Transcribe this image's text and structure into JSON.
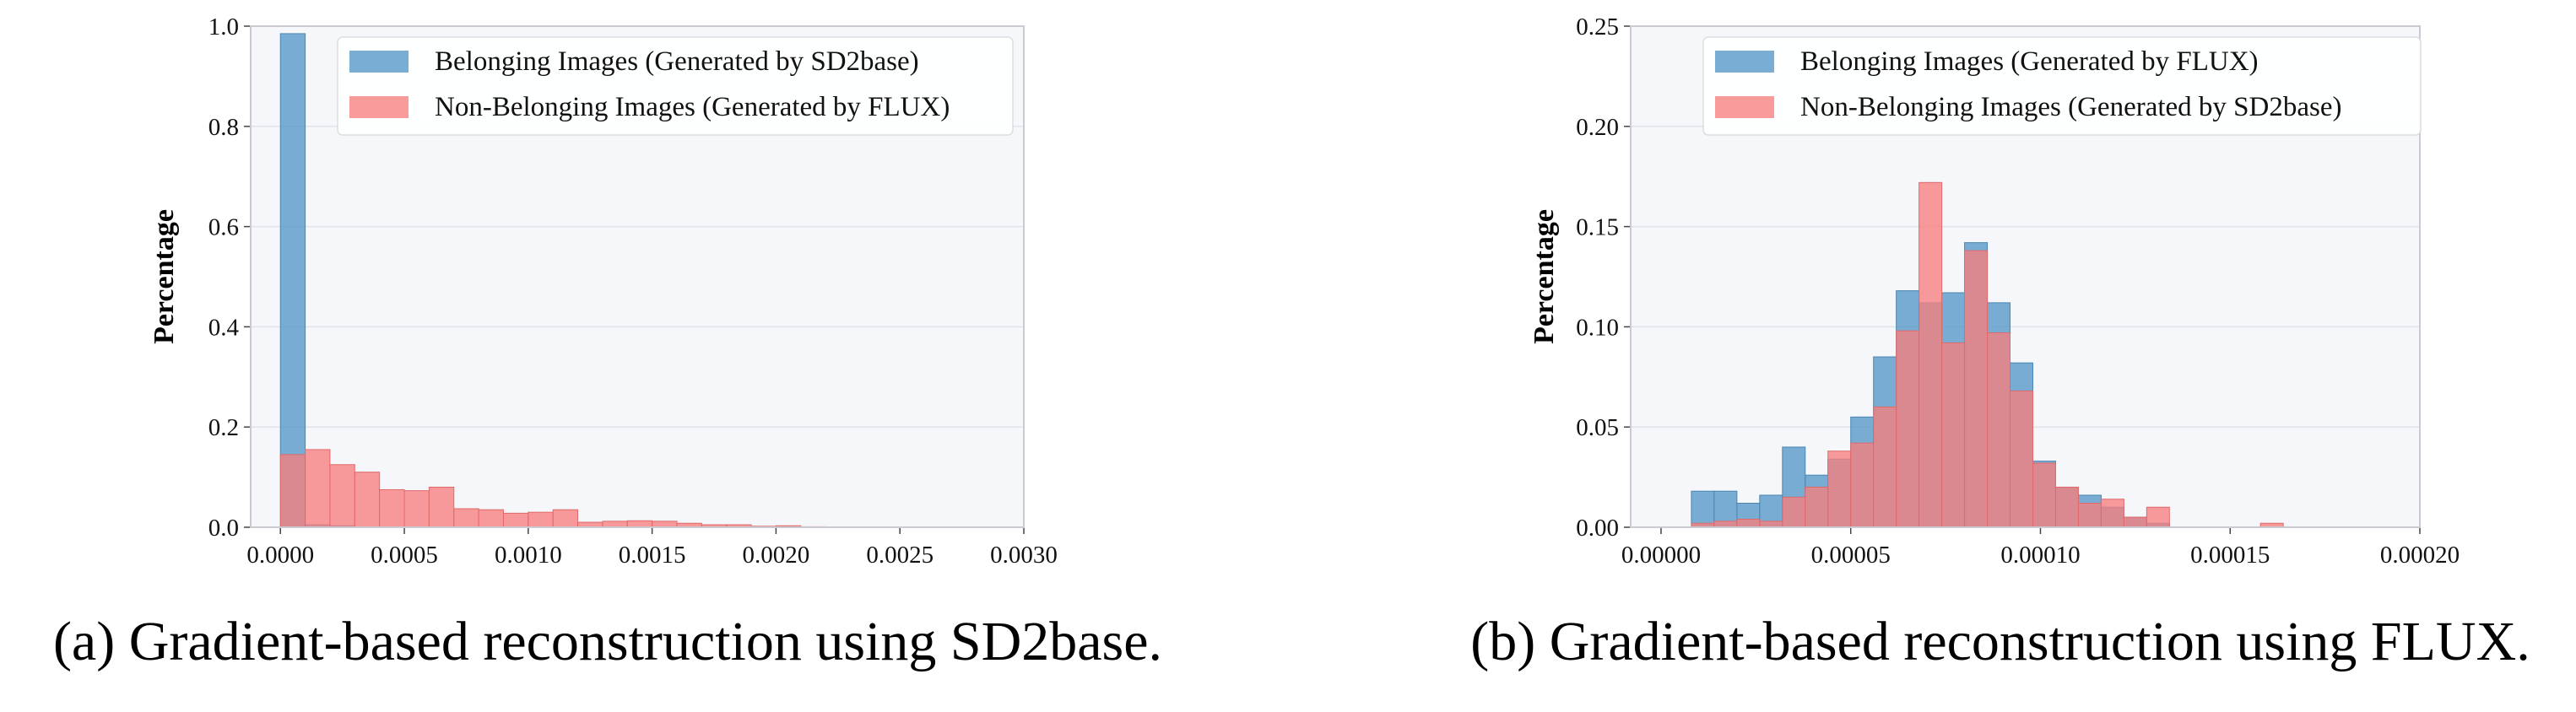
{
  "chart_data": [
    {
      "type": "bar",
      "ylabel": "Percentage",
      "xlabel": "",
      "xlim": [
        -0.00012,
        0.003
      ],
      "ylim": [
        0,
        1.0
      ],
      "xticks": [
        "0.0000",
        "0.0005",
        "0.0010",
        "0.0015",
        "0.0020",
        "0.0025",
        "0.0030"
      ],
      "yticks": [
        "0.0",
        "0.2",
        "0.4",
        "0.6",
        "0.8",
        "1.0"
      ],
      "grid": true,
      "legend_position": "top-right",
      "bin_width": 0.0001,
      "series": [
        {
          "name": "Belonging Images (Generated by SD2base)",
          "color": "#5b9bc9",
          "bins": [
            [
              0.0,
              0.985
            ],
            [
              0.0001,
              0.005
            ],
            [
              0.0002,
              0.003
            ]
          ]
        },
        {
          "name": "Non-Belonging Images (Generated by FLUX)",
          "color": "#f77f7f",
          "bins": [
            [
              0.0,
              0.145
            ],
            [
              0.0001,
              0.155
            ],
            [
              0.0002,
              0.125
            ],
            [
              0.0003,
              0.11
            ],
            [
              0.0004,
              0.075
            ],
            [
              0.0005,
              0.073
            ],
            [
              0.0006,
              0.08
            ],
            [
              0.0007,
              0.037
            ],
            [
              0.0008,
              0.035
            ],
            [
              0.0009,
              0.028
            ],
            [
              0.001,
              0.03
            ],
            [
              0.0011,
              0.035
            ],
            [
              0.0012,
              0.01
            ],
            [
              0.0013,
              0.012
            ],
            [
              0.0014,
              0.013
            ],
            [
              0.0015,
              0.012
            ],
            [
              0.0016,
              0.008
            ],
            [
              0.0017,
              0.005
            ],
            [
              0.0018,
              0.005
            ],
            [
              0.0019,
              0.002
            ],
            [
              0.002,
              0.003
            ],
            [
              0.0021,
              0.001
            ]
          ]
        }
      ],
      "caption": "(a) Gradient-based reconstruction using SD2base."
    },
    {
      "type": "bar",
      "ylabel": "Percentage",
      "xlabel": "",
      "xlim": [
        -8e-06,
        0.0002
      ],
      "ylim": [
        0,
        0.25
      ],
      "xticks": [
        "0.00000",
        "0.00005",
        "0.00010",
        "0.00015",
        "0.00020"
      ],
      "yticks": [
        "0.00",
        "0.05",
        "0.10",
        "0.15",
        "0.20",
        "0.25"
      ],
      "grid": true,
      "legend_position": "top-right",
      "bin_width": 6e-06,
      "series": [
        {
          "name": "Belonging Images (Generated by FLUX)",
          "color": "#5b9bc9",
          "bins": [
            [
              8e-06,
              0.018
            ],
            [
              1.4e-05,
              0.018
            ],
            [
              2e-05,
              0.012
            ],
            [
              2.6e-05,
              0.016
            ],
            [
              3.2e-05,
              0.04
            ],
            [
              3.8e-05,
              0.026
            ],
            [
              4.4e-05,
              0.034
            ],
            [
              5e-05,
              0.055
            ],
            [
              5.6e-05,
              0.085
            ],
            [
              6.2e-05,
              0.118
            ],
            [
              6.8e-05,
              0.112
            ],
            [
              7.4e-05,
              0.117
            ],
            [
              8e-05,
              0.142
            ],
            [
              8.6e-05,
              0.112
            ],
            [
              9.2e-05,
              0.082
            ],
            [
              9.8e-05,
              0.033
            ],
            [
              0.000104,
              0.02
            ],
            [
              0.00011,
              0.016
            ],
            [
              0.000116,
              0.01
            ],
            [
              0.000122,
              0.005
            ],
            [
              0.000128,
              0.002
            ]
          ]
        },
        {
          "name": "Non-Belonging Images (Generated by SD2base)",
          "color": "#f77f7f",
          "bins": [
            [
              8e-06,
              0.002
            ],
            [
              1.4e-05,
              0.003
            ],
            [
              2e-05,
              0.004
            ],
            [
              2.6e-05,
              0.003
            ],
            [
              3.2e-05,
              0.015
            ],
            [
              3.8e-05,
              0.02
            ],
            [
              4.4e-05,
              0.038
            ],
            [
              5e-05,
              0.042
            ],
            [
              5.6e-05,
              0.06
            ],
            [
              6.2e-05,
              0.098
            ],
            [
              6.8e-05,
              0.172
            ],
            [
              7.4e-05,
              0.092
            ],
            [
              8e-05,
              0.138
            ],
            [
              8.6e-05,
              0.097
            ],
            [
              9.2e-05,
              0.068
            ],
            [
              9.8e-05,
              0.032
            ],
            [
              0.000104,
              0.02
            ],
            [
              0.00011,
              0.012
            ],
            [
              0.000116,
              0.014
            ],
            [
              0.000122,
              0.005
            ],
            [
              0.000128,
              0.01
            ],
            [
              0.000158,
              0.002
            ]
          ]
        }
      ],
      "caption": "(b) Gradient-based reconstruction using FLUX."
    }
  ],
  "style": {
    "plot_background": "#f6f7fa",
    "grid_color": "#e1e3e8",
    "axis_color": "#c9cbd2",
    "overlap_tint": "#a76c8c"
  }
}
